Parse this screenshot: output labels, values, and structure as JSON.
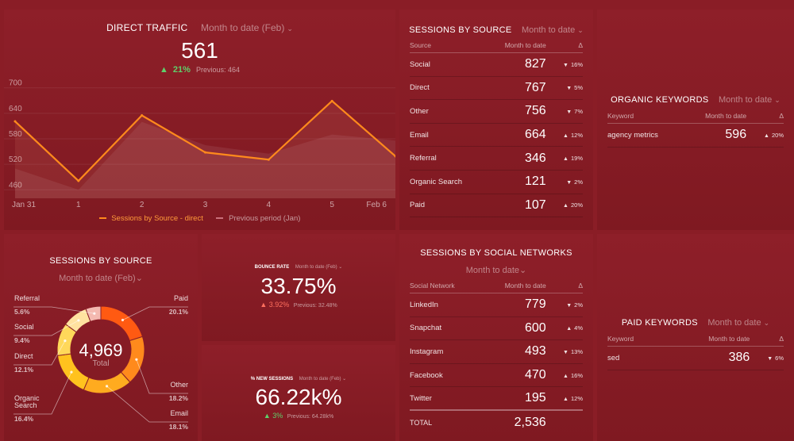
{
  "direct_traffic": {
    "title": "DIRECT TRAFFIC",
    "range": "Month to date (Feb)",
    "value": "561",
    "change": "21%",
    "previous": "Previous: 464",
    "y_ticks": [
      "700",
      "640",
      "580",
      "520",
      "460"
    ],
    "x_ticks": [
      "Jan 31",
      "1",
      "2",
      "3",
      "4",
      "5",
      "Feb 6"
    ],
    "legend_current": "Sessions by Source - direct",
    "legend_previous": "Previous period (Jan)"
  },
  "chart_data": {
    "type": "line",
    "x": [
      "Jan 31",
      "1",
      "2",
      "3",
      "4",
      "5",
      "Feb 6"
    ],
    "series": [
      {
        "name": "Sessions by Source - direct",
        "values": [
          621,
          481,
          635,
          548,
          531,
          669,
          539
        ]
      },
      {
        "name": "Previous period (Jan)",
        "values": [
          510,
          460,
          620,
          565,
          545,
          590,
          576
        ]
      }
    ],
    "ylim": [
      440,
      720
    ],
    "colors": {
      "current": "#ff8a1c",
      "previous": "#c9707a"
    }
  },
  "sessions_by_source_table": {
    "title": "SESSIONS BY SOURCE",
    "range": "Month to date",
    "headers": [
      "Source",
      "Month to date",
      "Δ"
    ],
    "rows": [
      {
        "name": "Social",
        "value": "827",
        "delta": "16%",
        "dir": "down"
      },
      {
        "name": "Direct",
        "value": "767",
        "delta": "5%",
        "dir": "down"
      },
      {
        "name": "Other",
        "value": "756",
        "delta": "7%",
        "dir": "down"
      },
      {
        "name": "Email",
        "value": "664",
        "delta": "12%",
        "dir": "up"
      },
      {
        "name": "Referral",
        "value": "346",
        "delta": "19%",
        "dir": "up"
      },
      {
        "name": "Organic Search",
        "value": "121",
        "delta": "2%",
        "dir": "down"
      },
      {
        "name": "Paid",
        "value": "107",
        "delta": "20%",
        "dir": "up"
      }
    ]
  },
  "organic_keywords": {
    "title": "ORGANIC KEYWORDS",
    "range": "Month to date",
    "headers": [
      "Keyword",
      "Month to date",
      "Δ"
    ],
    "rows": [
      {
        "name": "agency metrics",
        "value": "596",
        "delta": "20%",
        "dir": "up"
      }
    ]
  },
  "sessions_by_source_donut": {
    "title": "SESSIONS BY SOURCE",
    "range": "Month to date (Feb)",
    "total": "4,969",
    "total_label": "Total",
    "slices": [
      {
        "name": "Paid",
        "pct": "20.1%",
        "value": 20.1,
        "color": "#ff5a12"
      },
      {
        "name": "Other",
        "pct": "18.2%",
        "value": 18.2,
        "color": "#ff8a1c"
      },
      {
        "name": "Email",
        "pct": "18.1%",
        "value": 18.1,
        "color": "#ffab1f"
      },
      {
        "name": "Organic Search",
        "pct": "16.4%",
        "value": 16.4,
        "color": "#ffc21e"
      },
      {
        "name": "Direct",
        "pct": "12.1%",
        "value": 12.1,
        "color": "#ffd85a"
      },
      {
        "name": "Social",
        "pct": "9.4%",
        "value": 9.4,
        "color": "#ffe2a0"
      },
      {
        "name": "Referral",
        "pct": "5.6%",
        "value": 5.6,
        "color": "#f4b9b0"
      }
    ]
  },
  "bounce_rate": {
    "title": "BOUNCE RATE",
    "range": "Month to date (Feb)",
    "value": "33.75%",
    "change": "3.92%",
    "previous": "Previous: 32.48%"
  },
  "new_sessions": {
    "title": "% NEW SESSIONS",
    "range": "Month to date (Feb)",
    "value": "66.22k%",
    "change": "3%",
    "previous": "Previous: 64.28k%"
  },
  "social_networks": {
    "title": "SESSIONS BY SOCIAL NETWORKS",
    "range": "Month to date",
    "headers": [
      "Social Network",
      "Month to date",
      "Δ"
    ],
    "rows": [
      {
        "name": "LinkedIn",
        "value": "779",
        "delta": "2%",
        "dir": "down"
      },
      {
        "name": "Snapchat",
        "value": "600",
        "delta": "4%",
        "dir": "up"
      },
      {
        "name": "Instagram",
        "value": "493",
        "delta": "13%",
        "dir": "down"
      },
      {
        "name": "Facebook",
        "value": "470",
        "delta": "16%",
        "dir": "up"
      },
      {
        "name": "Twitter",
        "value": "195",
        "delta": "12%",
        "dir": "up"
      }
    ],
    "total_label": "TOTAL",
    "total_value": "2,536"
  },
  "paid_keywords": {
    "title": "PAID KEYWORDS",
    "range": "Month to date",
    "headers": [
      "Keyword",
      "Month to date",
      "Δ"
    ],
    "rows": [
      {
        "name": "sed",
        "value": "386",
        "delta": "6%",
        "dir": "down"
      }
    ]
  },
  "icons": {
    "up": "▲",
    "down": "▼",
    "chevron": "⌄"
  }
}
